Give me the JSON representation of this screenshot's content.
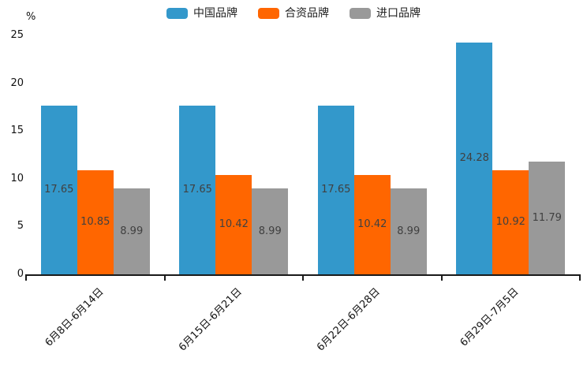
{
  "chart_data": {
    "type": "bar",
    "title": "",
    "unit_label": "%",
    "categories": [
      "6月8日-6月14日",
      "6月15日-6月21日",
      "6月22日-6月28日",
      "6月29日-7月5日"
    ],
    "series": [
      {
        "name": "中国品牌",
        "color": "#3398CB",
        "values": [
          17.65,
          17.65,
          17.65,
          24.28
        ]
      },
      {
        "name": "合资品牌",
        "color": "#FF6600",
        "values": [
          10.85,
          10.42,
          10.42,
          10.92
        ]
      },
      {
        "name": "进口品牌",
        "color": "#999999",
        "values": [
          8.99,
          8.99,
          8.99,
          11.79
        ]
      }
    ],
    "value_labels": [
      [
        "17.65",
        "17.65",
        "17.65",
        "24.28"
      ],
      [
        "10.85",
        "10.42",
        "10.42",
        "10.92"
      ],
      [
        "8.99",
        "8.99",
        "8.99",
        "11.79"
      ]
    ],
    "y_ticks": [
      "0",
      "5",
      "10",
      "15",
      "20",
      "25"
    ],
    "ylim": [
      0,
      25
    ],
    "legend_position": "top",
    "grid": false,
    "bar_label_color": "#404040",
    "axis_color": "#1a1a1a"
  }
}
